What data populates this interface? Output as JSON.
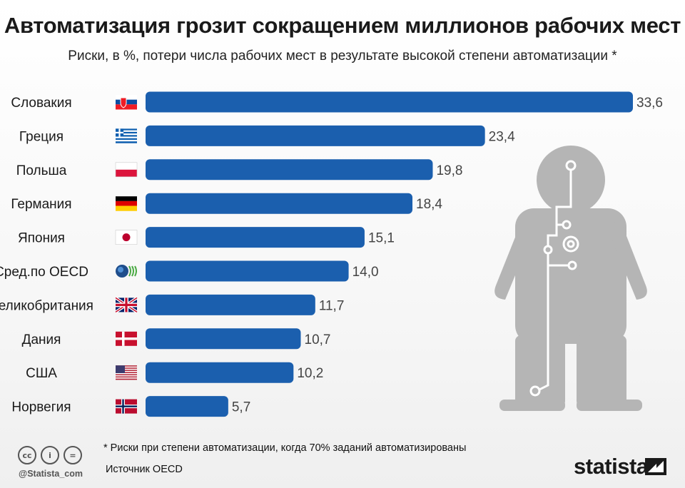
{
  "header": {
    "title": "Автоматизация грозит сокращением миллионов рабочих мест",
    "subtitle": "Риски, в %, потери числа рабочих мест в результате высокой степени автоматизации  *"
  },
  "chart_data": {
    "type": "bar",
    "orientation": "horizontal",
    "categories": [
      "Словакия",
      "Греция",
      "Польша",
      "Германия",
      "Япония",
      "Сред.по OECD",
      "Великобритания",
      "Дания",
      "США",
      "Норвегия"
    ],
    "values": [
      33.6,
      23.4,
      19.8,
      18.4,
      15.1,
      14.0,
      11.7,
      10.7,
      10.2,
      5.7
    ],
    "value_labels": [
      "33,6",
      "23,4",
      "19,8",
      "18,4",
      "15,1",
      "14,0",
      "11,7",
      "10,7",
      "10,2",
      "5,7"
    ],
    "flags": [
      "slovakia-flag-icon",
      "greece-flag-icon",
      "poland-flag-icon",
      "germany-flag-icon",
      "japan-flag-icon",
      "oecd-logo-icon",
      "uk-flag-icon",
      "denmark-flag-icon",
      "usa-flag-icon",
      "norway-flag-icon"
    ],
    "bar_color": "#1b5fae",
    "xlim": [
      0,
      33.6
    ],
    "grid": false
  },
  "footer": {
    "footnote": "* Риски при степени автоматизации, когда 70% заданий автоматизированы",
    "source": "Источник OECD",
    "handle": "@Statista_com",
    "brand": "statista",
    "cc_icons": [
      "cc",
      "i",
      "="
    ]
  }
}
